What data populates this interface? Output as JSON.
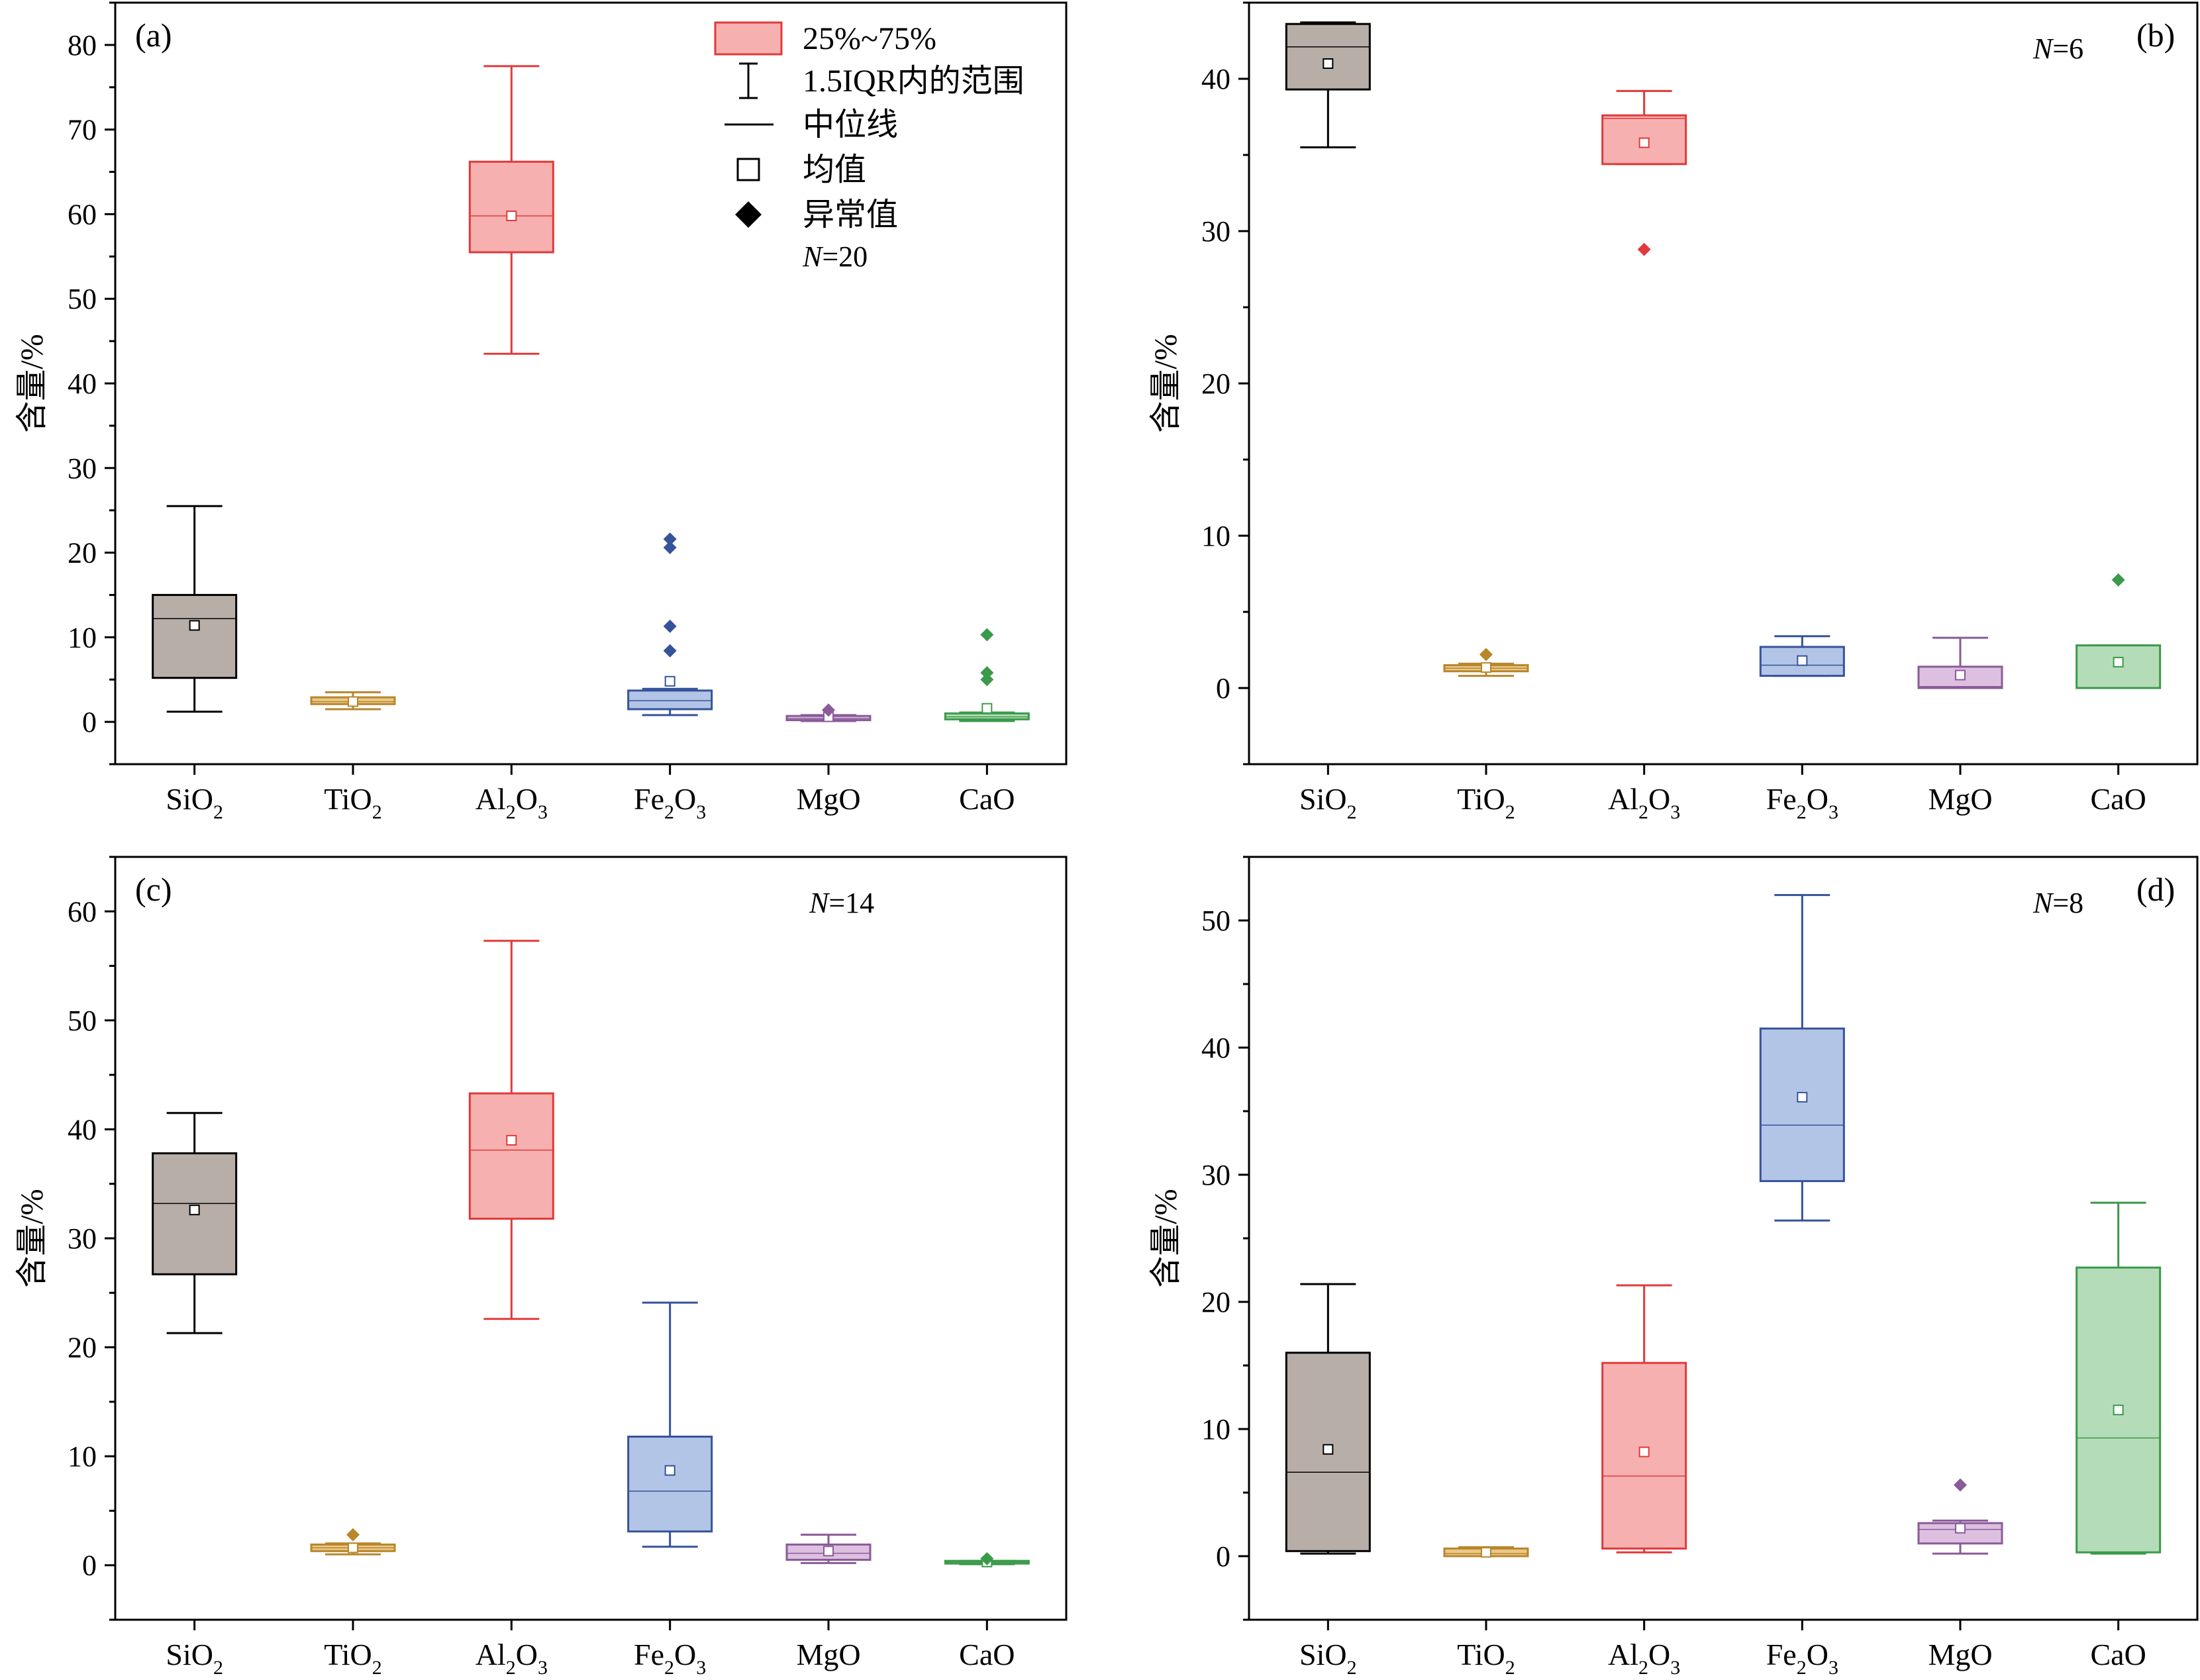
{
  "colors": {
    "SiO2": {
      "fill": "#b8aea8",
      "stroke": "#000000"
    },
    "TiO2": {
      "fill": "#e9c98a",
      "stroke": "#b8862b"
    },
    "Al2O3": {
      "fill": "#f7b0b0",
      "stroke": "#e03a3a"
    },
    "Fe2O3": {
      "fill": "#b3c5e6",
      "stroke": "#35539a"
    },
    "MgO": {
      "fill": "#ddc0e0",
      "stroke": "#8a5a9a"
    },
    "CaO": {
      "fill": "#b5dcb8",
      "stroke": "#3a9a4a"
    }
  },
  "legend": {
    "items": [
      {
        "label": "25%~75%",
        "symbol": "box"
      },
      {
        "label": "1.5IQR内的范围",
        "symbol": "whisker"
      },
      {
        "label": "中位线",
        "symbol": "line"
      },
      {
        "label": "均值",
        "symbol": "square"
      },
      {
        "label": "异常值",
        "symbol": "diamond"
      }
    ],
    "n_prefix": "N",
    "n_value": "=20",
    "placement": "top-center of panel (a)"
  },
  "chart_data": [
    {
      "type": "box",
      "panel_label": "(a)",
      "ylabel": "含量/%",
      "ylim": [
        -5,
        85
      ],
      "yticks": [
        0,
        10,
        20,
        30,
        40,
        50,
        60,
        70,
        80
      ],
      "categories": [
        {
          "base": "SiO",
          "sub": "2"
        },
        {
          "base": "TiO",
          "sub": "2"
        },
        {
          "base": "Al",
          "sub": "2",
          "base2": "O",
          "sub2": "3"
        },
        {
          "base": "Fe",
          "sub": "2",
          "base2": "O",
          "sub2": "3"
        },
        {
          "base": "MgO"
        },
        {
          "base": "CaO"
        }
      ],
      "boxes": [
        {
          "key": "SiO2",
          "wl": 1.2,
          "q1": 5.2,
          "median": 12.2,
          "q3": 15.0,
          "wh": 25.5,
          "mean": 11.4,
          "outliers": []
        },
        {
          "key": "TiO2",
          "wl": 1.5,
          "q1": 2.1,
          "median": 2.4,
          "q3": 2.9,
          "wh": 3.5,
          "mean": 2.4,
          "outliers": []
        },
        {
          "key": "Al2O3",
          "wl": 43.5,
          "q1": 55.5,
          "median": 59.8,
          "q3": 66.2,
          "wh": 77.5,
          "mean": 59.8,
          "outliers": []
        },
        {
          "key": "Fe2O3",
          "wl": 0.8,
          "q1": 1.5,
          "median": 2.5,
          "q3": 3.7,
          "wh": 3.9,
          "mean": 4.8,
          "outliers": [
            8.4,
            11.3,
            20.6,
            21.6
          ]
        },
        {
          "key": "MgO",
          "wl": 0.1,
          "q1": 0.2,
          "median": 0.4,
          "q3": 0.7,
          "wh": 0.8,
          "mean": 0.6,
          "outliers": [
            1.4
          ]
        },
        {
          "key": "CaO",
          "wl": 0.1,
          "q1": 0.3,
          "median": 0.6,
          "q3": 1.0,
          "wh": 1.1,
          "mean": 1.6,
          "outliers": [
            5.0,
            5.8,
            10.3
          ]
        }
      ]
    },
    {
      "type": "box",
      "panel_label": "(b)",
      "ylabel": "含量/%",
      "n_prefix": "N",
      "n_value": "=6",
      "ylim": [
        -5,
        45
      ],
      "yticks": [
        0,
        10,
        20,
        30,
        40
      ],
      "categories": [
        {
          "base": "SiO",
          "sub": "2"
        },
        {
          "base": "TiO",
          "sub": "2"
        },
        {
          "base": "Al",
          "sub": "2",
          "base2": "O",
          "sub2": "3"
        },
        {
          "base": "Fe",
          "sub": "2",
          "base2": "O",
          "sub2": "3"
        },
        {
          "base": "MgO"
        },
        {
          "base": "CaO"
        }
      ],
      "boxes": [
        {
          "key": "SiO2",
          "wl": 35.5,
          "q1": 39.3,
          "median": 42.1,
          "q3": 43.6,
          "wh": 43.7,
          "mean": 41.0,
          "outliers": []
        },
        {
          "key": "TiO2",
          "wl": 0.8,
          "q1": 1.1,
          "median": 1.3,
          "q3": 1.5,
          "wh": 1.6,
          "mean": 1.35,
          "outliers": [
            2.2
          ]
        },
        {
          "key": "Al2O3",
          "wl": 34.4,
          "q1": 34.4,
          "median": 37.4,
          "q3": 37.6,
          "wh": 39.2,
          "mean": 35.8,
          "outliers": [
            28.8
          ]
        },
        {
          "key": "Fe2O3",
          "wl": 0.8,
          "q1": 0.8,
          "median": 1.5,
          "q3": 2.7,
          "wh": 3.4,
          "mean": 1.8,
          "outliers": []
        },
        {
          "key": "MgO",
          "wl": 0.0,
          "q1": 0.0,
          "median": 0.1,
          "q3": 1.4,
          "wh": 3.3,
          "mean": 0.85,
          "outliers": []
        },
        {
          "key": "CaO",
          "wl": 0.0,
          "q1": 0.0,
          "median": 0.0,
          "q3": 2.8,
          "wh": 2.8,
          "mean": 1.7,
          "outliers": [
            7.1
          ]
        }
      ]
    },
    {
      "type": "box",
      "panel_label": "(c)",
      "ylabel": "含量/%",
      "n_prefix": "N",
      "n_value": "=14",
      "ylim": [
        -5,
        65
      ],
      "yticks": [
        0,
        10,
        20,
        30,
        40,
        50,
        60
      ],
      "categories": [
        {
          "base": "SiO",
          "sub": "2"
        },
        {
          "base": "TiO",
          "sub": "2"
        },
        {
          "base": "Al",
          "sub": "2",
          "base2": "O",
          "sub2": "3"
        },
        {
          "base": "Fe",
          "sub": "2",
          "base2": "O",
          "sub2": "3"
        },
        {
          "base": "MgO"
        },
        {
          "base": "CaO"
        }
      ],
      "boxes": [
        {
          "key": "SiO2",
          "wl": 21.3,
          "q1": 26.7,
          "median": 33.2,
          "q3": 37.8,
          "wh": 41.5,
          "mean": 32.6,
          "outliers": []
        },
        {
          "key": "TiO2",
          "wl": 1.0,
          "q1": 1.3,
          "median": 1.6,
          "q3": 1.9,
          "wh": 2.0,
          "mean": 1.6,
          "outliers": [
            2.8
          ]
        },
        {
          "key": "Al2O3",
          "wl": 22.6,
          "q1": 31.8,
          "median": 38.1,
          "q3": 43.3,
          "wh": 57.3,
          "mean": 39.0,
          "outliers": []
        },
        {
          "key": "Fe2O3",
          "wl": 1.7,
          "q1": 3.1,
          "median": 6.8,
          "q3": 11.8,
          "wh": 24.1,
          "mean": 8.7,
          "outliers": []
        },
        {
          "key": "MgO",
          "wl": 0.2,
          "q1": 0.5,
          "median": 1.1,
          "q3": 1.9,
          "wh": 2.8,
          "mean": 1.3,
          "outliers": []
        },
        {
          "key": "CaO",
          "wl": 0.1,
          "q1": 0.2,
          "median": 0.3,
          "q3": 0.4,
          "wh": 0.4,
          "mean": 0.3,
          "outliers": [
            0.6
          ]
        }
      ]
    },
    {
      "type": "box",
      "panel_label": "(d)",
      "ylabel": "含量/%",
      "n_prefix": "N",
      "n_value": "=8",
      "ylim": [
        -5,
        55
      ],
      "yticks": [
        0,
        10,
        20,
        30,
        40,
        50
      ],
      "categories": [
        {
          "base": "SiO",
          "sub": "2"
        },
        {
          "base": "TiO",
          "sub": "2"
        },
        {
          "base": "Al",
          "sub": "2",
          "base2": "O",
          "sub2": "3"
        },
        {
          "base": "Fe",
          "sub": "2",
          "base2": "O",
          "sub2": "3"
        },
        {
          "base": "MgO"
        },
        {
          "base": "CaO"
        }
      ],
      "boxes": [
        {
          "key": "SiO2",
          "wl": 0.2,
          "q1": 0.4,
          "median": 6.6,
          "q3": 16.0,
          "wh": 21.4,
          "mean": 8.4,
          "outliers": []
        },
        {
          "key": "TiO2",
          "wl": 0.0,
          "q1": 0.0,
          "median": 0.2,
          "q3": 0.6,
          "wh": 0.7,
          "mean": 0.3,
          "outliers": []
        },
        {
          "key": "Al2O3",
          "wl": 0.3,
          "q1": 0.6,
          "median": 6.3,
          "q3": 15.2,
          "wh": 21.3,
          "mean": 8.2,
          "outliers": []
        },
        {
          "key": "Fe2O3",
          "wl": 26.4,
          "q1": 29.5,
          "median": 33.9,
          "q3": 41.5,
          "wh": 52.0,
          "mean": 36.1,
          "outliers": []
        },
        {
          "key": "MgO",
          "wl": 0.2,
          "q1": 1.0,
          "median": 2.1,
          "q3": 2.6,
          "wh": 2.8,
          "mean": 2.2,
          "outliers": [
            5.6
          ]
        },
        {
          "key": "CaO",
          "wl": 0.2,
          "q1": 0.3,
          "median": 9.3,
          "q3": 22.7,
          "wh": 27.8,
          "mean": 11.5,
          "outliers": []
        }
      ]
    }
  ]
}
